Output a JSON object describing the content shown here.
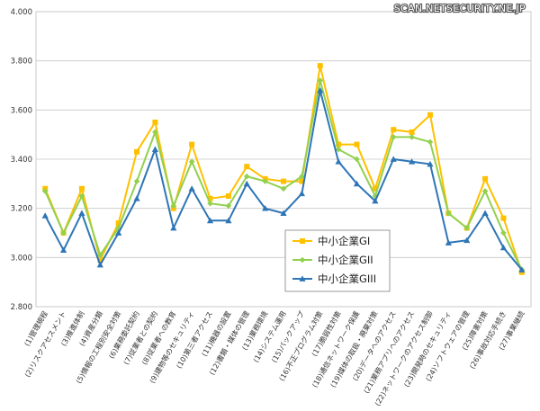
{
  "watermark": "SCAN.NETSECURITY.NE.JP",
  "chart_data": {
    "type": "line",
    "title": "",
    "xlabel": "",
    "ylabel": "",
    "ylim": [
      2.8,
      4.0
    ],
    "yticks": [
      "2.800",
      "3.000",
      "3.200",
      "3.400",
      "3.600",
      "3.800",
      "4.000"
    ],
    "grid": true,
    "legend_position": "lower-center",
    "categories": [
      "(1)管理規程",
      "(2)リスクアセスメント",
      "(3)推進体制",
      "(4)資産分類",
      "(5)情報の工程別安全対策",
      "(6)業務委託契約",
      "(7)従業者との契約",
      "(8)従業者への教育",
      "(9)建物等のセキュリティ",
      "(10)第三者アクセス",
      "(11)機器の設置",
      "(12)書類・媒体の管理",
      "(13)業務環境",
      "(14)システム運用",
      "(15)バックアップ",
      "(16)不正プログラム対策",
      "(17)脆弱性対策",
      "(18)通信ネットワーク保護",
      "(19)媒体の取扱・廃棄対策",
      "(20)データへのアクセス",
      "(21)業務アプリへのアクセス",
      "(22)ネットワークのアクセス制御",
      "(23)開発時のセキュリティ",
      "(24)ソフトウェアの管理",
      "(25)障害対策",
      "(26)事故対応手続き",
      "(27)事業継続"
    ],
    "series": [
      {
        "name": "中小企業GI",
        "color": "#FFC000",
        "marker": "square",
        "values": [
          3.28,
          3.1,
          3.28,
          2.99,
          3.14,
          3.43,
          3.55,
          3.2,
          3.46,
          3.24,
          3.25,
          3.37,
          3.32,
          3.31,
          3.31,
          3.78,
          3.46,
          3.46,
          3.28,
          3.52,
          3.51,
          3.58,
          3.18,
          3.12,
          3.32,
          3.16,
          2.94
        ]
      },
      {
        "name": "中小企業GII",
        "color": "#92D050",
        "marker": "diamond",
        "values": [
          3.27,
          3.1,
          3.25,
          3.01,
          3.12,
          3.31,
          3.51,
          3.21,
          3.39,
          3.22,
          3.21,
          3.33,
          3.31,
          3.28,
          3.33,
          3.72,
          3.44,
          3.4,
          3.25,
          3.49,
          3.49,
          3.47,
          3.18,
          3.12,
          3.27,
          3.1,
          2.95
        ]
      },
      {
        "name": "中小企業GIII",
        "color": "#2E75B6",
        "marker": "triangle",
        "values": [
          3.17,
          3.03,
          3.18,
          2.97,
          3.1,
          3.24,
          3.44,
          3.12,
          3.28,
          3.15,
          3.15,
          3.3,
          3.2,
          3.18,
          3.26,
          3.68,
          3.39,
          3.3,
          3.23,
          3.4,
          3.39,
          3.38,
          3.06,
          3.07,
          3.18,
          3.04,
          2.95
        ]
      }
    ]
  }
}
